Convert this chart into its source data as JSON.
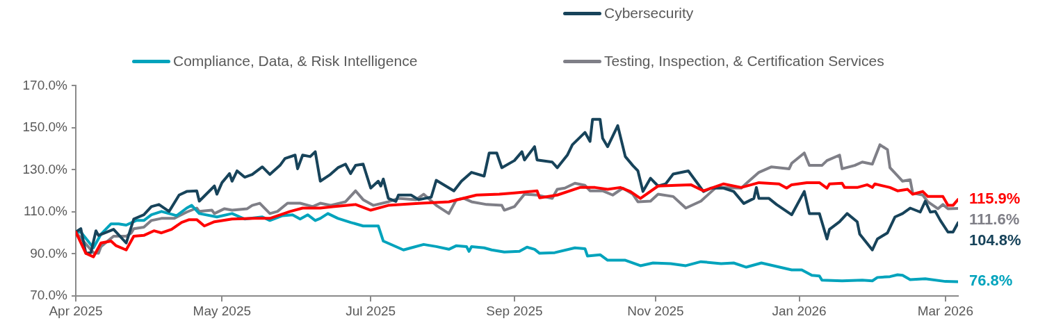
{
  "chart_data": {
    "type": "line",
    "legend": "top",
    "grid": false,
    "line_style": "solid",
    "xlim": [
      "2025-04-01",
      "2026-03-17"
    ],
    "xticks": [
      {
        "value": "2025-04-01",
        "label": "Apr 2025"
      },
      {
        "value": "2025-05-29",
        "label": "May 2025"
      },
      {
        "value": "2025-07-27",
        "label": "Jul 2025"
      },
      {
        "value": "2025-09-22",
        "label": "Sep 2025"
      },
      {
        "value": "2025-11-17",
        "label": "Nov 2025"
      },
      {
        "value": "2026-01-13",
        "label": "Jan 2026"
      },
      {
        "value": "2026-03-12",
        "label": "Mar 2026"
      }
    ],
    "ylim": [
      70,
      170
    ],
    "yticks": [
      {
        "value": 70,
        "label": "70.0%"
      },
      {
        "value": 90,
        "label": "90.0%"
      },
      {
        "value": 110,
        "label": "110.0%"
      },
      {
        "value": 130,
        "label": "130.0%"
      },
      {
        "value": 150,
        "label": "150.0%"
      },
      {
        "value": 170,
        "label": "170.0%"
      }
    ],
    "annotations": [
      {
        "text": "115.9%",
        "x": "2026-03-17",
        "y": 115.9
      },
      {
        "text": "111.6%",
        "x": "2026-03-17",
        "y": 111.6
      },
      {
        "text": "104.8%",
        "x": "2026-03-17",
        "y": 104.8
      },
      {
        "text": "76.8%",
        "x": "2026-03-17",
        "y": 76.8
      }
    ],
    "series": [
      {
        "color": "#ff0000",
        "x": [
          "2025-04-01",
          "2025-04-05",
          "2025-04-08",
          "2025-04-11",
          "2025-04-15",
          "2025-04-17",
          "2025-04-21",
          "2025-04-24",
          "2025-04-28",
          "2025-05-02",
          "2025-05-05",
          "2025-05-09",
          "2025-05-13",
          "2025-05-16",
          "2025-05-19",
          "2025-05-22",
          "2025-05-26",
          "2025-06-02",
          "2025-06-11",
          "2025-06-17",
          "2025-06-25",
          "2025-06-30",
          "2025-07-07",
          "2025-07-12",
          "2025-07-21",
          "2025-07-27",
          "2025-08-03",
          "2025-08-16",
          "2025-08-27",
          "2025-09-07",
          "2025-09-16",
          "2025-09-22",
          "2025-10-01",
          "2025-10-02",
          "2025-10-09",
          "2025-10-18",
          "2025-10-24",
          "2025-10-29",
          "2025-11-03",
          "2025-11-07",
          "2025-11-11",
          "2025-11-18",
          "2025-11-25",
          "2025-12-01",
          "2025-12-06",
          "2025-12-14",
          "2025-12-21",
          "2025-12-28",
          "2026-01-05",
          "2026-01-08",
          "2026-01-10",
          "2026-01-16",
          "2026-01-21",
          "2026-01-24",
          "2026-01-25",
          "2026-01-30",
          "2026-01-31",
          "2026-02-05",
          "2026-02-09",
          "2026-02-11",
          "2026-02-12",
          "2026-02-18",
          "2026-02-21",
          "2026-02-25",
          "2026-02-27",
          "2026-03-03",
          "2026-03-05",
          "2026-03-11",
          "2026-03-13",
          "2026-03-15",
          "2026-03-17"
        ],
        "values": [
          100.4,
          90.3,
          88.6,
          95.2,
          96.1,
          93.9,
          91.9,
          98.4,
          98.8,
          101,
          100,
          101.7,
          105,
          106.3,
          106.3,
          103.3,
          105.3,
          106.6,
          106.9,
          106.9,
          110.2,
          111.8,
          111.8,
          112.5,
          113.5,
          110.8,
          113.1,
          114.1,
          114.8,
          118,
          118.4,
          119,
          120,
          116.7,
          118,
          121.6,
          121.6,
          120.7,
          121.6,
          119.7,
          116.4,
          122.3,
          122.6,
          122.9,
          120,
          123.3,
          121.6,
          123.9,
          123.3,
          121.3,
          122.9,
          123.9,
          123.9,
          121.3,
          123.3,
          123.6,
          121.6,
          121.6,
          122.9,
          121.6,
          123.3,
          121.6,
          120,
          120.7,
          118.4,
          119.7,
          117.3,
          117.3,
          113.1,
          113.1,
          115.9
        ]
      },
      {
        "name": "Cybersecurity",
        "color": "#17435a",
        "x": [
          "2025-04-01",
          "2025-04-03",
          "2025-04-05",
          "2025-04-07",
          "2025-04-09",
          "2025-04-10",
          "2025-04-16",
          "2025-04-21",
          "2025-04-24",
          "2025-04-28",
          "2025-05-01",
          "2025-05-04",
          "2025-05-08",
          "2025-05-12",
          "2025-05-15",
          "2025-05-19",
          "2025-05-20",
          "2025-05-26",
          "2025-05-27",
          "2025-05-29",
          "2025-06-01",
          "2025-06-02",
          "2025-06-04",
          "2025-06-07",
          "2025-06-10",
          "2025-06-14",
          "2025-06-17",
          "2025-06-21",
          "2025-06-23",
          "2025-06-27",
          "2025-06-28",
          "2025-06-30",
          "2025-07-03",
          "2025-07-05",
          "2025-07-07",
          "2025-07-11",
          "2025-07-14",
          "2025-07-17",
          "2025-07-19",
          "2025-07-21",
          "2025-07-24",
          "2025-07-27",
          "2025-07-30",
          "2025-07-31",
          "2025-08-01",
          "2025-08-03",
          "2025-08-06",
          "2025-08-07",
          "2025-08-12",
          "2025-08-15",
          "2025-08-20",
          "2025-08-22",
          "2025-08-29",
          "2025-09-01",
          "2025-09-05",
          "2025-09-10",
          "2025-09-12",
          "2025-09-15",
          "2025-09-17",
          "2025-09-22",
          "2025-09-25",
          "2025-09-26",
          "2025-09-30",
          "2025-10-01",
          "2025-10-07",
          "2025-10-09",
          "2025-10-13",
          "2025-10-15",
          "2025-10-20",
          "2025-10-22",
          "2025-10-23",
          "2025-10-26",
          "2025-10-27",
          "2025-10-29",
          "2025-11-02",
          "2025-11-05",
          "2025-11-08",
          "2025-11-10",
          "2025-11-12",
          "2025-11-15",
          "2025-11-18",
          "2025-11-21",
          "2025-11-24",
          "2025-11-30",
          "2025-12-03",
          "2025-12-06",
          "2025-12-09",
          "2025-12-14",
          "2025-12-18",
          "2025-12-22",
          "2025-12-26",
          "2025-12-27",
          "2025-12-28",
          "2026-01-01",
          "2026-01-04",
          "2026-01-10",
          "2026-01-11",
          "2026-01-15",
          "2026-01-17",
          "2026-01-21",
          "2026-01-24",
          "2026-01-25",
          "2026-01-29",
          "2026-02-01",
          "2026-02-05",
          "2026-02-06",
          "2026-02-11",
          "2026-02-13",
          "2026-02-17",
          "2026-02-20",
          "2026-02-23",
          "2026-02-26",
          "2026-03-02",
          "2026-03-04",
          "2026-03-06",
          "2026-03-08",
          "2026-03-10",
          "2026-03-13",
          "2026-03-15",
          "2026-03-17"
        ],
        "values": [
          100.4,
          102,
          90.3,
          90.6,
          101,
          98.8,
          101.7,
          95.2,
          106.6,
          108.6,
          112.5,
          113.5,
          110.2,
          118,
          119.7,
          120,
          115.1,
          122.3,
          118.4,
          123.9,
          128.2,
          124.6,
          129.5,
          126.5,
          127.8,
          131.4,
          127.8,
          132.1,
          135.4,
          137,
          130.5,
          137,
          136.3,
          138.6,
          124.6,
          127.8,
          131,
          132.7,
          128.2,
          132.1,
          132.7,
          121.3,
          124.6,
          122.3,
          125.6,
          116.4,
          115,
          118,
          118,
          115.8,
          117,
          125,
          120,
          124.6,
          128.8,
          127,
          138,
          138,
          131,
          134.4,
          138.6,
          134.7,
          141,
          134.7,
          133.7,
          131,
          137,
          141.9,
          147.8,
          143.5,
          154,
          154,
          145,
          141,
          151,
          136.3,
          132,
          129.5,
          119.7,
          126,
          122.3,
          123.3,
          128,
          129.5,
          124.6,
          119.7,
          121.3,
          121.3,
          119.7,
          114,
          116.4,
          121.6,
          116.4,
          116.4,
          113.5,
          108.6,
          110.8,
          119.7,
          109.2,
          109.2,
          97.1,
          101.7,
          105.3,
          109.2,
          105.3,
          99.4,
          91.9,
          97.1,
          100,
          107.6,
          109.2,
          111.8,
          109.9,
          115.1,
          109.9,
          110.2,
          105.9,
          100.4,
          100.4,
          104.8
        ]
      },
      {
        "name": "Compliance, Data, & Risk Intelligence",
        "color": "#00a3bc",
        "x": [
          "2025-04-01",
          "2025-04-03",
          "2025-04-08",
          "2025-04-11",
          "2025-04-15",
          "2025-04-18",
          "2025-04-21",
          "2025-04-25",
          "2025-04-28",
          "2025-05-01",
          "2025-05-05",
          "2025-05-11",
          "2025-05-15",
          "2025-05-17",
          "2025-05-20",
          "2025-05-27",
          "2025-06-02",
          "2025-06-07",
          "2025-06-14",
          "2025-06-17",
          "2025-06-22",
          "2025-06-26",
          "2025-06-29",
          "2025-07-02",
          "2025-07-05",
          "2025-07-07",
          "2025-07-10",
          "2025-07-14",
          "2025-07-19",
          "2025-07-24",
          "2025-07-30",
          "2025-08-01",
          "2025-08-09",
          "2025-08-12",
          "2025-08-17",
          "2025-08-22",
          "2025-08-27",
          "2025-08-30",
          "2025-09-03",
          "2025-09-04",
          "2025-09-05",
          "2025-09-10",
          "2025-09-13",
          "2025-09-18",
          "2025-09-24",
          "2025-09-27",
          "2025-09-30",
          "2025-10-02",
          "2025-10-08",
          "2025-10-16",
          "2025-10-20",
          "2025-10-21",
          "2025-10-26",
          "2025-10-29",
          "2025-11-05",
          "2025-11-11",
          "2025-11-16",
          "2025-11-23",
          "2025-11-29",
          "2025-12-05",
          "2025-12-13",
          "2025-12-18",
          "2025-12-23",
          "2025-12-29",
          "2026-01-10",
          "2026-01-14",
          "2026-01-18",
          "2026-01-21",
          "2026-01-22",
          "2026-01-30",
          "2026-02-07",
          "2026-02-11",
          "2026-02-13",
          "2026-02-18",
          "2026-02-21",
          "2026-02-23",
          "2026-02-26",
          "2026-03-04",
          "2026-03-12",
          "2026-03-17"
        ],
        "values": [
          100.4,
          100.4,
          92.9,
          99.4,
          104.3,
          104.3,
          103.7,
          105.9,
          105.9,
          108.6,
          110.2,
          108.2,
          111.8,
          113.1,
          109.2,
          107.6,
          109.2,
          106.6,
          107.6,
          105.9,
          108.2,
          108.6,
          106.6,
          108.6,
          105.9,
          106.9,
          109.2,
          106.9,
          105,
          103.3,
          103.3,
          96.1,
          91.9,
          92.9,
          94.5,
          93.5,
          92.2,
          93.9,
          93.5,
          91.2,
          93.5,
          92.9,
          91.9,
          90.9,
          91.2,
          93.2,
          92.2,
          90.3,
          90.6,
          92.9,
          92.5,
          89,
          89.6,
          87,
          87,
          84.4,
          85.7,
          85.4,
          84.4,
          86.3,
          85.4,
          85.7,
          83.7,
          85.7,
          82.4,
          82.4,
          79.8,
          79.5,
          77.5,
          77.2,
          77.5,
          77.2,
          78.8,
          79.2,
          80.1,
          79.8,
          77.8,
          78.2,
          76.9,
          76.8
        ]
      },
      {
        "name": "Testing, Inspection, & Certification Services",
        "color": "#7f7f87",
        "x": [
          "2025-04-01",
          "2025-04-04",
          "2025-04-08",
          "2025-04-10",
          "2025-04-11",
          "2025-04-16",
          "2025-04-21",
          "2025-04-23",
          "2025-04-24",
          "2025-04-28",
          "2025-05-01",
          "2025-05-05",
          "2025-05-10",
          "2025-05-15",
          "2025-05-19",
          "2025-05-20",
          "2025-05-25",
          "2025-05-26",
          "2025-05-30",
          "2025-06-02",
          "2025-06-08",
          "2025-06-10",
          "2025-06-13",
          "2025-06-17",
          "2025-06-20",
          "2025-06-24",
          "2025-06-29",
          "2025-07-04",
          "2025-07-07",
          "2025-07-11",
          "2025-07-17",
          "2025-07-21",
          "2025-07-24",
          "2025-07-28",
          "2025-08-03",
          "2025-08-07",
          "2025-08-14",
          "2025-08-17",
          "2025-08-22",
          "2025-08-27",
          "2025-08-30",
          "2025-09-02",
          "2025-09-05",
          "2025-09-11",
          "2025-09-17",
          "2025-09-18",
          "2025-09-22",
          "2025-09-26",
          "2025-10-01",
          "2025-10-07",
          "2025-10-09",
          "2025-10-12",
          "2025-10-16",
          "2025-10-20",
          "2025-10-22",
          "2025-10-27",
          "2025-10-31",
          "2025-11-04",
          "2025-11-08",
          "2025-11-10",
          "2025-11-15",
          "2025-11-18",
          "2025-11-24",
          "2025-11-29",
          "2025-12-05",
          "2025-12-07",
          "2025-12-11",
          "2025-12-21",
          "2025-12-24",
          "2025-12-28",
          "2026-01-02",
          "2026-01-09",
          "2026-01-10",
          "2026-01-15",
          "2026-01-17",
          "2026-01-22",
          "2026-01-24",
          "2026-01-29",
          "2026-01-30",
          "2026-02-04",
          "2026-02-07",
          "2026-02-11",
          "2026-02-14",
          "2026-02-17",
          "2026-02-18",
          "2026-02-23",
          "2026-02-26",
          "2026-02-27",
          "2026-03-03",
          "2026-03-05",
          "2026-03-09",
          "2026-03-11",
          "2026-03-13",
          "2026-03-17"
        ],
        "values": [
          100.4,
          96.1,
          90.6,
          90.3,
          93.5,
          98.4,
          98.4,
          100,
          102,
          102.7,
          105.9,
          106.9,
          106.9,
          109.9,
          111.8,
          110.2,
          110.8,
          109.2,
          111.5,
          110.8,
          111.5,
          113.1,
          114.1,
          109.2,
          110.2,
          114.1,
          114.1,
          112.5,
          114.1,
          113.1,
          114.8,
          120,
          115.8,
          113.1,
          114.8,
          116.4,
          115.8,
          118.4,
          113.1,
          109.2,
          115.8,
          116.4,
          114.8,
          113.5,
          113.1,
          110.8,
          112.5,
          118.4,
          118,
          116.4,
          120.7,
          121.3,
          123.6,
          122.6,
          120,
          120,
          118,
          121.3,
          118.4,
          114.8,
          115.1,
          118.4,
          117.3,
          111.8,
          115.1,
          117.3,
          121.6,
          121.3,
          124.6,
          128.8,
          131.4,
          130.5,
          133.1,
          138,
          132.1,
          132.1,
          134.4,
          137,
          130.5,
          132.1,
          133.7,
          132.7,
          141.9,
          139.6,
          131,
          124.6,
          125.3,
          119,
          118,
          114.8,
          111.5,
          113.5,
          111.5,
          111.6
        ]
      }
    ]
  }
}
